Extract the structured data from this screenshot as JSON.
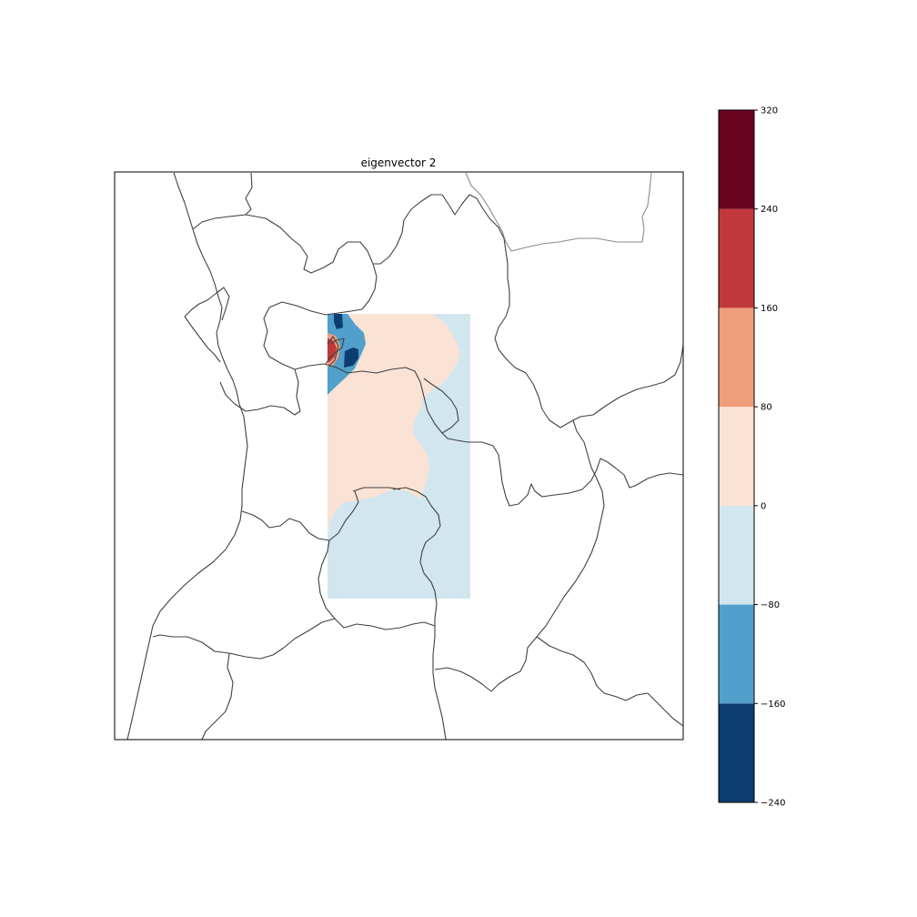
{
  "chart_data": {
    "type": "heatmap",
    "title": "eigenvector 2",
    "colorbar": {
      "levels": [
        -240,
        -160,
        -80,
        0,
        80,
        160,
        240,
        320
      ],
      "tick_labels": [
        "−240",
        "−160",
        "−80",
        "0",
        "80",
        "160",
        "240",
        "320"
      ],
      "colors": [
        "#0d3e72",
        "#519fcb",
        "#d2e6f0",
        "#fae2d4",
        "#ef9d7b",
        "#c1383b",
        "#6a0320"
      ]
    },
    "grid": false,
    "legend": "colorbar on right"
  }
}
